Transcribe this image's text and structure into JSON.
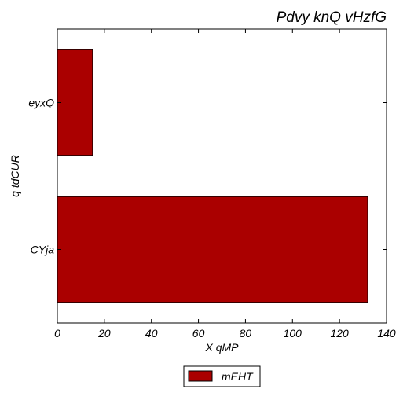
{
  "chart_data": {
    "type": "bar",
    "orientation": "horizontal",
    "title": "Pdvy knQ vHzfG",
    "xlabel": "X qMP",
    "ylabel": "q tdCUR",
    "categories": [
      "CYja",
      "eyxQ"
    ],
    "series": [
      {
        "name": "mEHT",
        "values": [
          132,
          15
        ]
      }
    ],
    "xlim": [
      0,
      140
    ],
    "xticks": [
      "0",
      "20",
      "40",
      "60",
      "80",
      "100",
      "120",
      "140"
    ],
    "grid": false,
    "legend_position": "bottom-center",
    "colors": {
      "bar": "#aa0000",
      "edge": "#000000"
    }
  }
}
